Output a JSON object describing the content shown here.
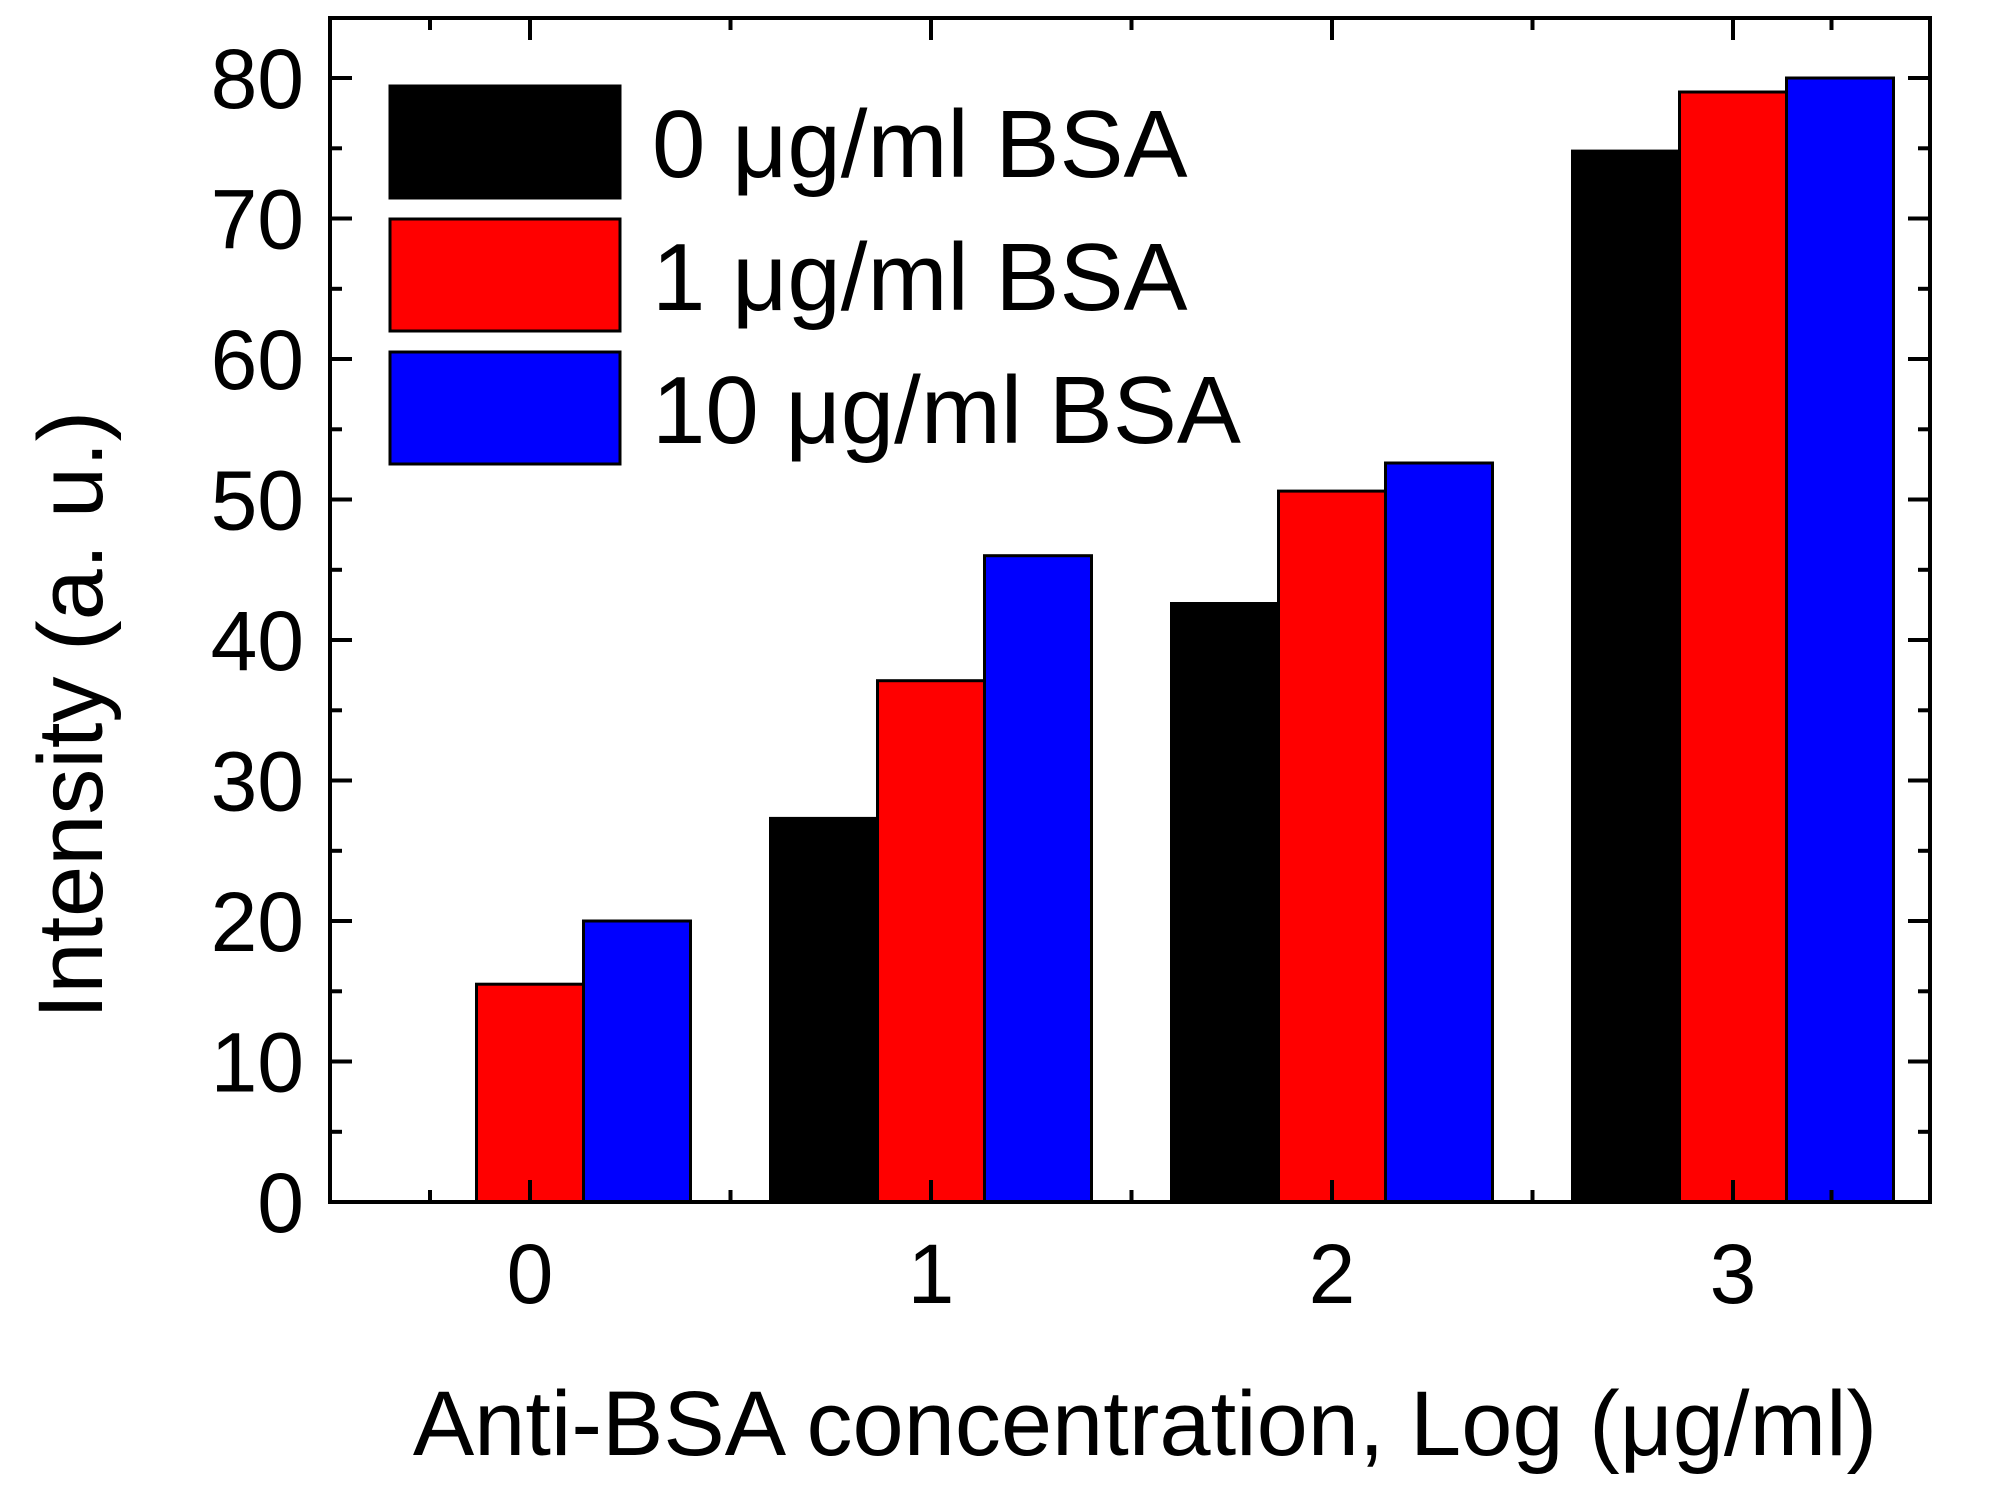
{
  "chart_data": {
    "type": "bar",
    "title": "",
    "xlabel": "Anti-BSA concentration, Log (μg/ml)",
    "ylabel": "Intensity (a. u.)",
    "categories": [
      "0",
      "1",
      "2",
      "3"
    ],
    "ylim": [
      0,
      80
    ],
    "yticks": [
      "0",
      "10",
      "20",
      "30",
      "40",
      "50",
      "60",
      "70",
      "80"
    ],
    "legend_position": "top-left",
    "series": [
      {
        "name": "0 μg/ml BSA",
        "color": "#000000",
        "values": [
          0,
          27.3,
          42.6,
          74.8
        ]
      },
      {
        "name": "1 μg/ml BSA",
        "color": "#ff0000",
        "values": [
          15.5,
          37.1,
          50.6,
          79.0
        ]
      },
      {
        "name": "10 μg/ml BSA",
        "color": "#0000ff",
        "values": [
          20.0,
          46.0,
          52.6,
          80.0
        ]
      }
    ]
  }
}
